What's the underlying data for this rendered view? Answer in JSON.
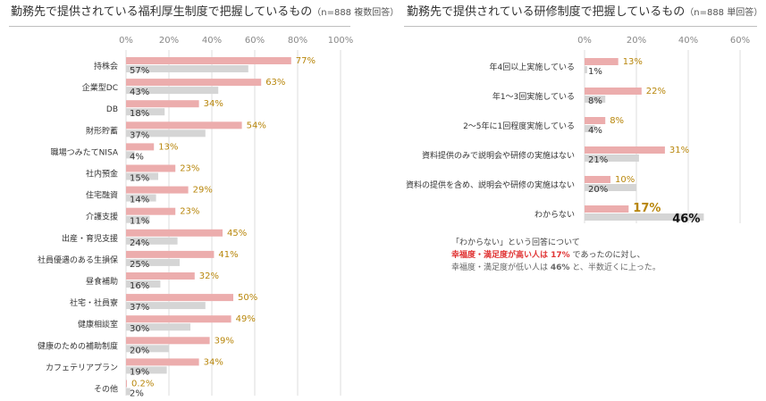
{
  "left_panel": {
    "title": "勤務先で提供されている福利厚生制度で把握しているもの",
    "note": "（n=888 複数回答）"
  },
  "right_panel": {
    "title": "勤務先で提供されている研修制度で把握しているもの",
    "note": "（n=888 単回答）"
  },
  "annotation": {
    "line1": "「わからない」という回答について",
    "line2_strong": "幸福度・満足度が高い人は 17%",
    "line2_rest": " であったのに対し、",
    "line3_pre": "幸福度・満足度が低い人は ",
    "line3_val": "46%",
    "line3_post": " と、半数近くに上った。"
  },
  "colors": {
    "high": "#ecadad",
    "low": "#d5d5d5",
    "high_label": "#b8860b",
    "low_label": "#333333",
    "grid": "#dddddd"
  },
  "chart_data": [
    {
      "type": "bar",
      "orientation": "horizontal",
      "xlim": [
        0,
        100
      ],
      "ticks": [
        "0%",
        "20%",
        "40%",
        "60%",
        "80%",
        "100%"
      ],
      "categories": [
        "持株会",
        "企業型DC",
        "DB",
        "財形貯蓄",
        "職場つみたてNISA",
        "社内預金",
        "住宅融資",
        "介護支援",
        "出産・育児支援",
        "社員優遇のある生損保",
        "昼食補助",
        "社宅・社員寮",
        "健康相談室",
        "健康のための補助制度",
        "カフェテリアプラン",
        "その他"
      ],
      "series": [
        {
          "values": [
            77,
            63,
            34,
            54,
            13,
            23,
            29,
            23,
            45,
            41,
            32,
            50,
            49,
            39,
            34,
            0.2
          ],
          "labels": [
            "77%",
            "63%",
            "34%",
            "54%",
            "13%",
            "23%",
            "29%",
            "23%",
            "45%",
            "41%",
            "32%",
            "50%",
            "49%",
            "39%",
            "34%",
            "0.2%"
          ]
        },
        {
          "values": [
            57,
            43,
            18,
            37,
            4,
            15,
            14,
            11,
            24,
            25,
            16,
            37,
            30,
            20,
            19,
            2
          ],
          "labels": [
            "57%",
            "43%",
            "18%",
            "37%",
            "4%",
            "15%",
            "14%",
            "11%",
            "24%",
            "25%",
            "16%",
            "37%",
            "30%",
            "20%",
            "19%",
            "2%"
          ]
        }
      ]
    },
    {
      "type": "bar",
      "orientation": "horizontal",
      "xlim": [
        0,
        60
      ],
      "ticks": [
        "0%",
        "20%",
        "40%",
        "60%"
      ],
      "categories": [
        "年4回以上実施している",
        "年1～3回実施している",
        "2～5年に1回程度実施している",
        "資料提供のみで説明会や研修の実施はない",
        "資料の提供を含め、説明会や研修の実施はない",
        "わからない"
      ],
      "series": [
        {
          "values": [
            13,
            22,
            8,
            31,
            10,
            17
          ],
          "labels": [
            "13%",
            "22%",
            "8%",
            "31%",
            "10%",
            "17%"
          ]
        },
        {
          "values": [
            1,
            8,
            4,
            21,
            20,
            46
          ],
          "labels": [
            "1%",
            "8%",
            "4%",
            "21%",
            "20%",
            "46%"
          ]
        }
      ]
    }
  ]
}
